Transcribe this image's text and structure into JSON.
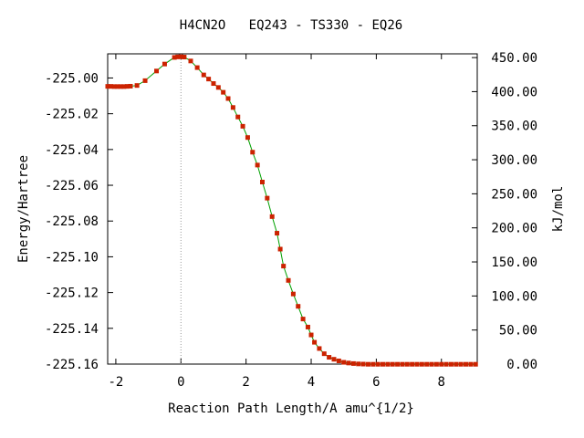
{
  "chart_data": {
    "type": "line",
    "title": "H4CN2O   EQ243 - TS330 - EQ26",
    "xlabel": "Reaction Path Length/A amu^{1/2}",
    "ylabel": "Energy/Hartree",
    "y2label": "kJ/mol",
    "xlim": [
      -2.25,
      9.1
    ],
    "ylim": [
      -225.16,
      -224.9865
    ],
    "y2lim": [
      0,
      455.5
    ],
    "x_ticks": [
      -2,
      0,
      2,
      4,
      6,
      8
    ],
    "x_tick_labels": [
      "-2",
      "0",
      "2",
      "4",
      "6",
      "8"
    ],
    "y_ticks": [
      -225.0,
      -225.02,
      -225.04,
      -225.06,
      -225.08,
      -225.1,
      -225.12,
      -225.14,
      -225.16
    ],
    "y_tick_labels": [
      "-225.00",
      "-225.02",
      "-225.04",
      "-225.06",
      "-225.08",
      "-225.10",
      "-225.12",
      "-225.14",
      "-225.16"
    ],
    "y2_ticks": [
      0,
      50,
      100,
      150,
      200,
      250,
      300,
      350,
      400,
      450
    ],
    "y2_tick_labels": [
      "0.00",
      "50.00",
      "100.00",
      "150.00",
      "200.00",
      "250.00",
      "300.00",
      "350.00",
      "400.00",
      "450.00"
    ],
    "ts_marker_x": 0,
    "grid": false,
    "line_color": "#00a000",
    "marker_color": "#cc2200",
    "series": [
      {
        "x": [
          -2.25,
          -2.15,
          -2.05,
          -1.95,
          -1.85,
          -1.75,
          -1.65,
          -1.55,
          -1.35,
          -1.1,
          -0.75,
          -0.5,
          -0.2,
          -0.1,
          0.0,
          0.1,
          0.3,
          0.5,
          0.7,
          0.85,
          1.0,
          1.15,
          1.3,
          1.45,
          1.6,
          1.75,
          1.9,
          2.05,
          2.2,
          2.35,
          2.5,
          2.65,
          2.8,
          2.95,
          3.05,
          3.15,
          3.3,
          3.45,
          3.6,
          3.75,
          3.9,
          4.0,
          4.1,
          4.25,
          4.4,
          4.55,
          4.7,
          4.85,
          5.0,
          5.15,
          5.3,
          5.45,
          5.6,
          5.75,
          5.9,
          6.05,
          6.2,
          6.35,
          6.5,
          6.65,
          6.8,
          6.95,
          7.1,
          7.25,
          7.4,
          7.55,
          7.7,
          7.85,
          8.0,
          8.15,
          8.3,
          8.45,
          8.6,
          8.75,
          8.9,
          9.05
        ],
        "values": [
          -225.0047,
          -225.0047,
          -225.0048,
          -225.0048,
          -225.0048,
          -225.0048,
          -225.0047,
          -225.0046,
          -225.0042,
          -225.0015,
          -224.9961,
          -224.9922,
          -224.9885,
          -224.9882,
          -224.9881,
          -224.9883,
          -224.9905,
          -224.9942,
          -224.9983,
          -225.0006,
          -225.0031,
          -225.0053,
          -225.008,
          -225.0115,
          -225.0165,
          -225.0218,
          -225.027,
          -225.0333,
          -225.0415,
          -225.0487,
          -225.0582,
          -225.0672,
          -225.0775,
          -225.0868,
          -225.0957,
          -225.1052,
          -225.1132,
          -225.1208,
          -225.1277,
          -225.1348,
          -225.1393,
          -225.1437,
          -225.1478,
          -225.1513,
          -225.1542,
          -225.1562,
          -225.1573,
          -225.1582,
          -225.159,
          -225.1594,
          -225.1597,
          -225.1599,
          -225.16,
          -225.1601,
          -225.1601,
          -225.1601,
          -225.1601,
          -225.1601,
          -225.1601,
          -225.1601,
          -225.1601,
          -225.1601,
          -225.1601,
          -225.1601,
          -225.1601,
          -225.1601,
          -225.1601,
          -225.1601,
          -225.1601,
          -225.1601,
          -225.1601,
          -225.1601,
          -225.1601,
          -225.1601,
          -225.1601,
          -225.1601
        ]
      }
    ]
  }
}
